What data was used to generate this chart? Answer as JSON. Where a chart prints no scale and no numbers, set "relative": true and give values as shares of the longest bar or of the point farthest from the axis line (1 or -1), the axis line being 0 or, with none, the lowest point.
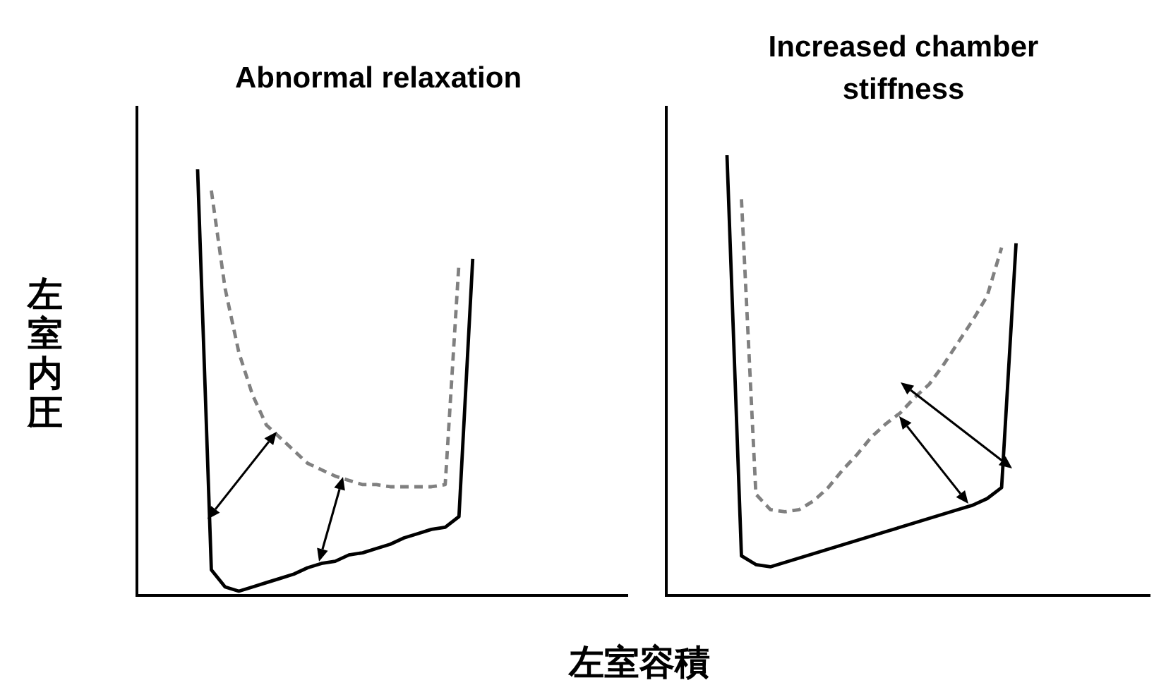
{
  "chart_data": [
    {
      "type": "line",
      "title": "Abnormal relaxation",
      "ylabel": "左室内圧",
      "xlabel": "左室容積",
      "relative": true,
      "categories": [
        null,
        null,
        null,
        null,
        null,
        null,
        null,
        null,
        null,
        null,
        null,
        null,
        null,
        null,
        null,
        null,
        null,
        null,
        null,
        null,
        null
      ],
      "series": [
        {
          "color": "#000000",
          "line_style": "solid",
          "values": [
            1.0,
            0.06,
            0.02,
            0.01,
            0.02,
            0.03,
            0.04,
            0.05,
            0.065,
            0.075,
            0.08,
            0.095,
            0.1,
            0.11,
            0.12,
            0.135,
            0.145,
            0.155,
            0.16,
            0.185,
            0.79
          ]
        },
        {
          "color": "#808080",
          "line_style": "dashed",
          "values": [
            null,
            0.95,
            0.72,
            0.57,
            0.47,
            0.4,
            0.37,
            0.34,
            0.31,
            0.295,
            0.28,
            0.27,
            0.26,
            0.26,
            0.255,
            0.255,
            0.255,
            0.255,
            0.26,
            0.78,
            null
          ]
        }
      ]
    },
    {
      "type": "line",
      "title": "Increased chamber stiffness",
      "relative": true,
      "categories": [
        null,
        null,
        null,
        null,
        null,
        null,
        null,
        null,
        null,
        null,
        null,
        null,
        null,
        null,
        null,
        null,
        null,
        null,
        null,
        null,
        null
      ],
      "series": [
        {
          "color": "#000000",
          "line_style": "solid",
          "values": [
            1.0,
            0.09,
            0.07,
            0.065,
            0.075,
            0.085,
            0.095,
            0.105,
            0.115,
            0.125,
            0.135,
            0.145,
            0.155,
            0.165,
            0.175,
            0.185,
            0.195,
            0.205,
            0.22,
            0.245,
            0.8
          ]
        },
        {
          "color": "#808080",
          "line_style": "dashed",
          "values": [
            null,
            0.9,
            0.23,
            0.195,
            0.19,
            0.195,
            0.215,
            0.245,
            0.285,
            0.32,
            0.36,
            0.39,
            0.415,
            0.45,
            0.48,
            0.525,
            0.575,
            0.625,
            0.68,
            0.79,
            null
          ]
        }
      ]
    }
  ]
}
